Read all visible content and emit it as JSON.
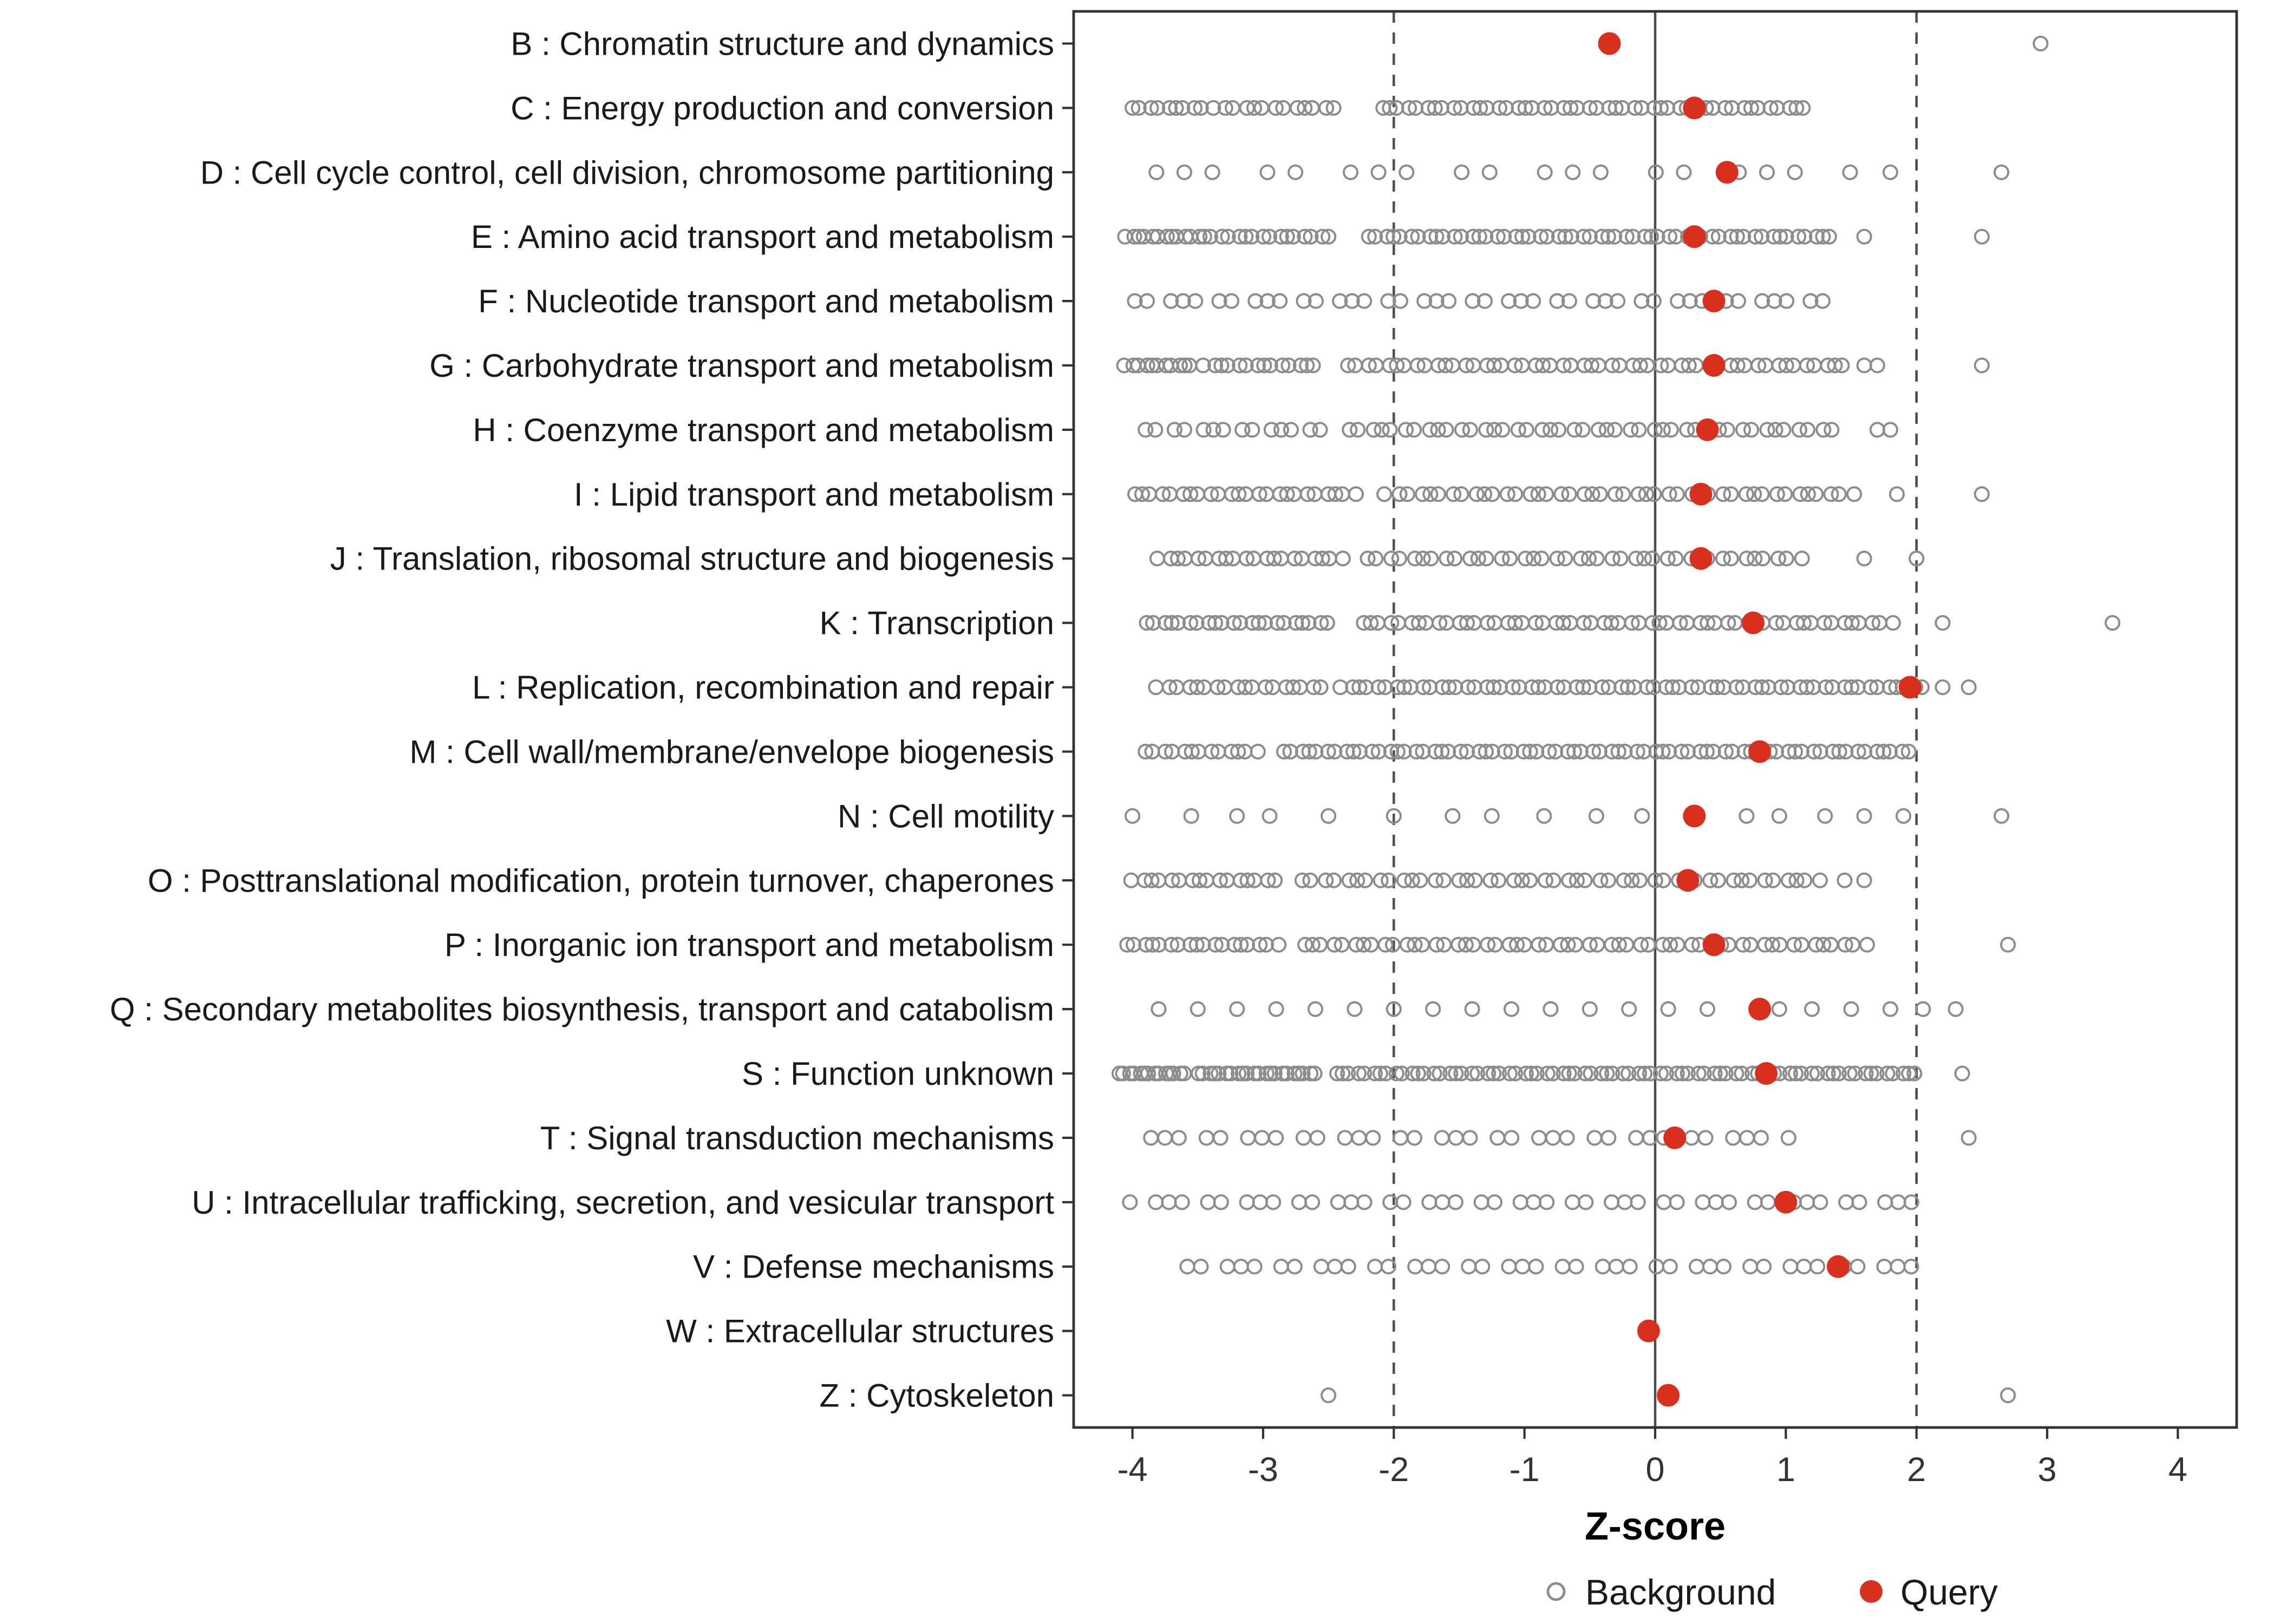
{
  "figure": {
    "xlabel": "Z-score"
  },
  "legend": {
    "items": [
      {
        "label": "Background",
        "marker": "open-circle",
        "color": "#8c8c8c"
      },
      {
        "label": "Query",
        "marker": "filled-circle",
        "color": "#d7301f"
      }
    ]
  },
  "chart_data": {
    "type": "scatter",
    "variant": "strip-dot-plot",
    "title": "",
    "xlabel": "Z-score",
    "ylabel": "",
    "xlim": [
      -4.45,
      4.45
    ],
    "x_ticks": [
      -4,
      -3,
      -2,
      -1,
      0,
      1,
      2,
      3,
      4
    ],
    "grid": false,
    "legend_position": "bottom",
    "reference_lines": {
      "solid": [
        0
      ],
      "dashed": [
        -2,
        2
      ]
    },
    "colors": {
      "background": "#8c8c8c",
      "query": "#d7301f",
      "panel_border": "#333333",
      "reference_line": "#4d4d4d"
    },
    "series_note": "Gray open circles = Background gene-family Z-scores per COG category; red filled dot = Query Z-score",
    "categories": [
      {
        "label": "B : Chromatin structure and dynamics",
        "query": -0.35,
        "background_runs": [],
        "background_extra": [
          2.95
        ]
      },
      {
        "label": "C : Energy production and conversion",
        "query": 0.3,
        "background_runs": [
          [
            -4.0,
            -3.4,
            10
          ],
          [
            -3.3,
            -2.45,
            12
          ],
          [
            -2.1,
            1.15,
            48
          ]
        ],
        "background_extra": []
      },
      {
        "label": "D : Cell cycle control, cell division, chromosome partitioning",
        "query": 0.55,
        "background_runs": [
          [
            -3.9,
            1.45,
            19
          ]
        ],
        "background_extra": [
          1.8,
          2.65
        ]
      },
      {
        "label": "E : Amino acid transport and metabolism",
        "query": 0.3,
        "background_runs": [
          [
            -4.05,
            -3.5,
            12
          ],
          [
            -3.45,
            -2.5,
            16
          ],
          [
            -2.2,
            1.35,
            55
          ]
        ],
        "background_extra": [
          1.6,
          2.5
        ]
      },
      {
        "label": "F : Nucleotide transport and metabolism",
        "query": 0.45,
        "background_runs": [
          [
            -4.0,
            1.3,
            42
          ]
        ],
        "background_extra": []
      },
      {
        "label": "G : Carbohydrate transport and metabolism",
        "query": 0.45,
        "background_runs": [
          [
            -4.05,
            -3.55,
            11
          ],
          [
            -3.45,
            -2.6,
            14
          ],
          [
            -2.35,
            1.45,
            52
          ]
        ],
        "background_extra": [
          1.6,
          1.7,
          2.5
        ]
      },
      {
        "label": "H : Coenzyme transport and metabolism",
        "query": 0.4,
        "background_runs": [
          [
            -3.9,
            -2.55,
            14
          ],
          [
            -2.35,
            1.35,
            44
          ]
        ],
        "background_extra": [
          1.7,
          1.8
        ]
      },
      {
        "label": "I : Lipid transport and metabolism",
        "query": 0.35,
        "background_runs": [
          [
            -4.0,
            -2.3,
            24
          ],
          [
            -2.05,
            1.5,
            44
          ]
        ],
        "background_extra": [
          1.85,
          2.5
        ]
      },
      {
        "label": "J : Translation, ribosomal structure and biogenesis",
        "query": 0.35,
        "background_runs": [
          [
            -3.8,
            -2.4,
            20
          ],
          [
            -2.2,
            1.1,
            40
          ]
        ],
        "background_extra": [
          1.6,
          2.0
        ]
      },
      {
        "label": "K : Transcription",
        "query": 0.75,
        "background_runs": [
          [
            -3.9,
            -2.5,
            22
          ],
          [
            -2.25,
            1.8,
            56
          ]
        ],
        "background_extra": [
          2.2,
          3.5
        ]
      },
      {
        "label": "L : Replication, recombination and repair",
        "query": 1.95,
        "background_runs": [
          [
            -3.8,
            -2.55,
            18
          ],
          [
            -2.4,
            2.05,
            66
          ]
        ],
        "background_extra": [
          2.2,
          2.4
        ]
      },
      {
        "label": "M : Cell wall/membrane/envelope biogenesis",
        "query": 0.8,
        "background_runs": [
          [
            -3.9,
            -3.05,
            13
          ],
          [
            -2.85,
            1.95,
            72
          ]
        ],
        "background_extra": []
      },
      {
        "label": "N : Cell motility",
        "query": 0.3,
        "background_runs": [],
        "background_extra": [
          -4.0,
          -3.55,
          -3.2,
          -2.95,
          -2.5,
          -2.0,
          -1.55,
          -1.25,
          -0.85,
          -0.45,
          -0.1,
          0.7,
          0.95,
          1.3,
          1.6,
          1.9,
          2.65
        ]
      },
      {
        "label": "O : Posttranslational modification, protein turnover, chaperones",
        "query": 0.25,
        "background_runs": [
          [
            -4.0,
            -2.9,
            16
          ],
          [
            -2.7,
            1.25,
            48
          ]
        ],
        "background_extra": [
          1.45,
          1.6
        ]
      },
      {
        "label": "P : Inorganic ion transport and metabolism",
        "query": 0.45,
        "background_runs": [
          [
            -4.05,
            -2.9,
            18
          ],
          [
            -2.7,
            1.6,
            56
          ]
        ],
        "background_extra": [
          2.7
        ]
      },
      {
        "label": "Q : Secondary metabolites biosynthesis, transport and catabolism",
        "query": 0.8,
        "background_runs": [],
        "background_extra": [
          -3.8,
          -3.5,
          -3.2,
          -2.9,
          -2.6,
          -2.3,
          -2.0,
          -1.7,
          -1.4,
          -1.1,
          -0.8,
          -0.5,
          -0.2,
          0.1,
          0.4,
          0.95,
          1.2,
          1.5,
          1.8,
          2.05,
          2.3
        ]
      },
      {
        "label": "S : Function unknown",
        "query": 0.85,
        "background_runs": [
          [
            -4.1,
            -3.6,
            14
          ],
          [
            -3.5,
            -2.6,
            22
          ],
          [
            -2.45,
            2.0,
            78
          ]
        ],
        "background_extra": [
          2.35
        ]
      },
      {
        "label": "T : Signal transduction mechanisms",
        "query": 0.15,
        "background_runs": [
          [
            -3.9,
            1.0,
            34
          ]
        ],
        "background_extra": [
          2.4
        ]
      },
      {
        "label": "U : Intracellular trafficking, secretion, and vesicular transport",
        "query": 1.0,
        "background_runs": [
          [
            -4.0,
            2.0,
            44
          ]
        ],
        "background_extra": []
      },
      {
        "label": "V : Defense mechanisms",
        "query": 1.4,
        "background_runs": [
          [
            -3.6,
            2.0,
            40
          ]
        ],
        "background_extra": []
      },
      {
        "label": "W : Extracellular structures",
        "query": -0.05,
        "background_runs": [],
        "background_extra": []
      },
      {
        "label": "Z : Cytoskeleton",
        "query": 0.1,
        "background_runs": [],
        "background_extra": [
          -2.5,
          2.7
        ]
      }
    ]
  }
}
